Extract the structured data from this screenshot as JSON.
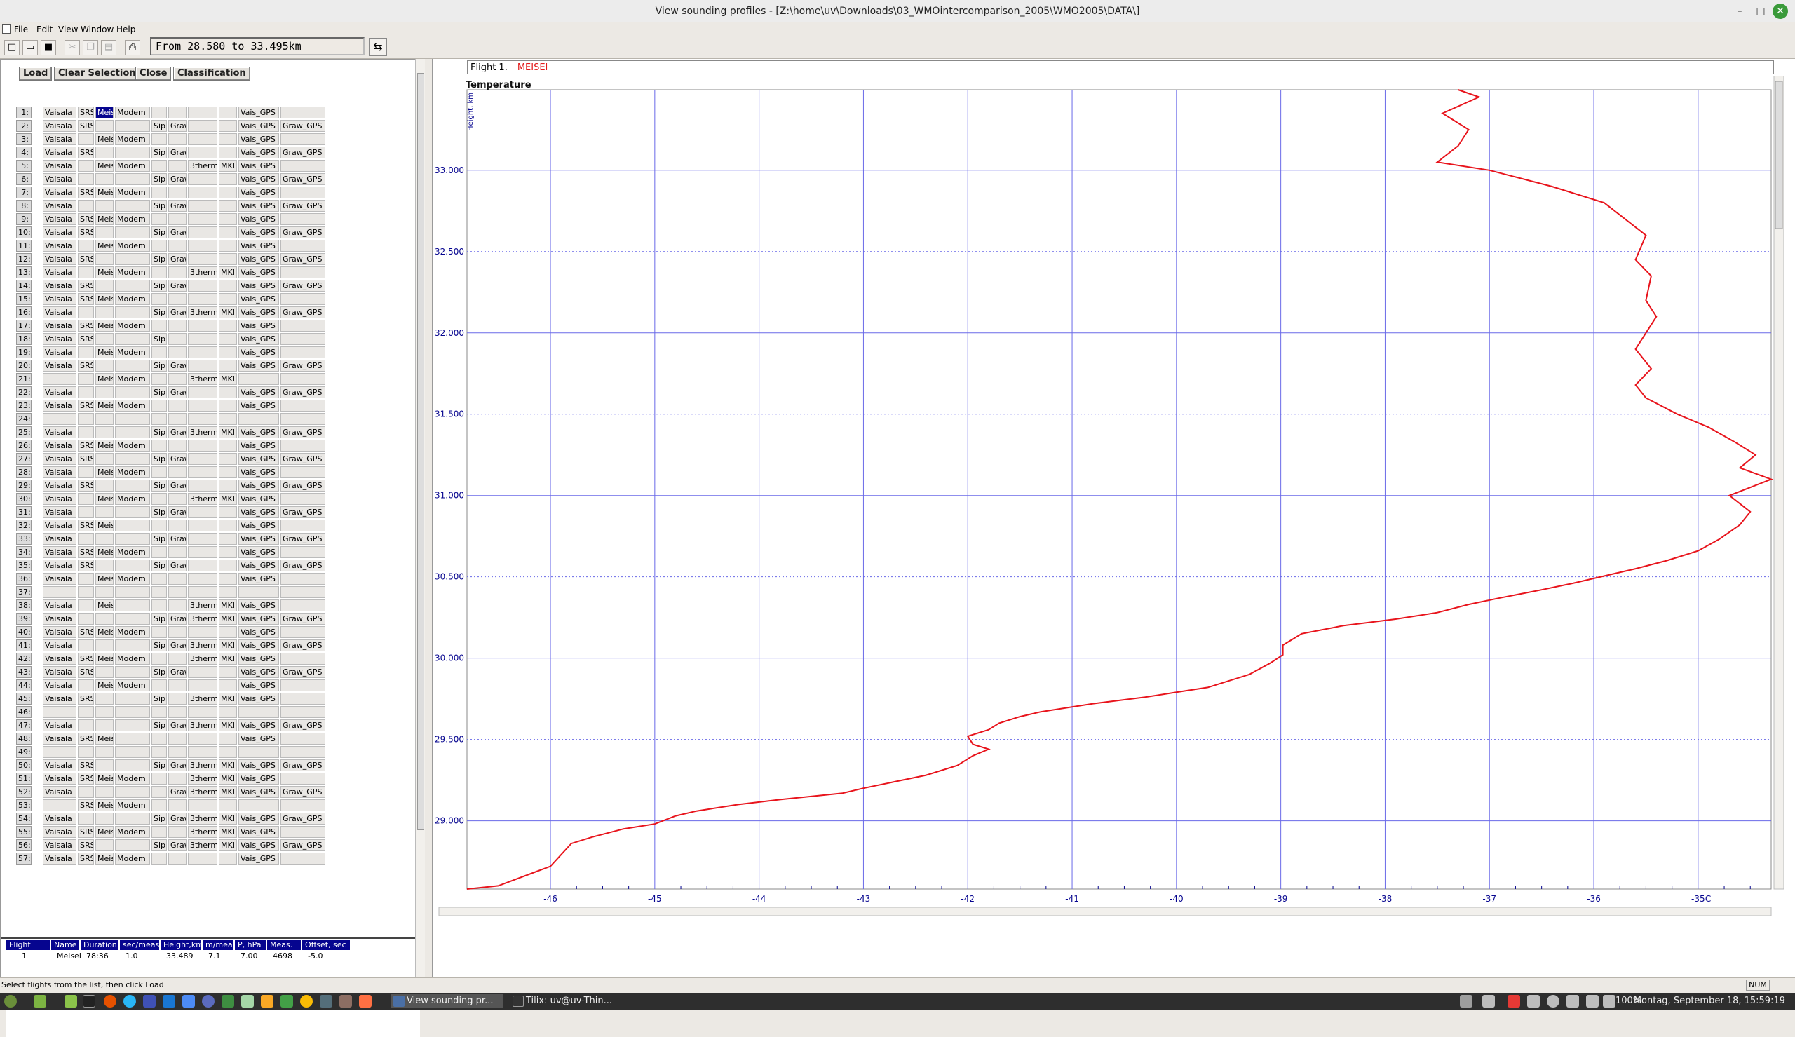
{
  "window": {
    "title": "View sounding profiles - [Z:\\home\\uv\\Downloads\\03_WMOintercomparison_2005\\WMO2005\\DATA\\]",
    "minimize": "–",
    "maximize": "□",
    "close": "✕"
  },
  "menu": [
    "File",
    "Edit",
    "View",
    "Window",
    "Help"
  ],
  "toolbar": {
    "range": "From 28.580  to  33.495km",
    "swap_icon": "⇆",
    "icons": [
      "new-file-icon",
      "open-folder-icon",
      "save-icon",
      "cut-icon",
      "copy-icon",
      "paste-icon",
      "print-icon"
    ]
  },
  "buttons": {
    "load": "Load",
    "clear": "Clear Selection",
    "close": "Close",
    "classification": "Classification"
  },
  "flight_rows": [
    [
      "1:",
      "Vaisala",
      "SRS",
      "Meisei",
      "Modem",
      "",
      "",
      "",
      "",
      "Vais_GPS",
      ""
    ],
    [
      "2:",
      "Vaisala",
      "SRS",
      "",
      "",
      "Sip",
      "Graw",
      "",
      "",
      "Vais_GPS",
      "Graw_GPS"
    ],
    [
      "3:",
      "Vaisala",
      "",
      "Meisei",
      "Modem",
      "",
      "",
      "",
      "",
      "Vais_GPS",
      ""
    ],
    [
      "4:",
      "Vaisala",
      "SRS",
      "",
      "",
      "Sip",
      "Graw",
      "",
      "",
      "Vais_GPS",
      "Graw_GPS"
    ],
    [
      "5:",
      "Vaisala",
      "",
      "Meisei",
      "Modem",
      "",
      "",
      "3therm",
      "MKII",
      "Vais_GPS",
      ""
    ],
    [
      "6:",
      "Vaisala",
      "",
      "",
      "",
      "Sip",
      "Graw",
      "",
      "",
      "Vais_GPS",
      "Graw_GPS"
    ],
    [
      "7:",
      "Vaisala",
      "SRS",
      "Meisei",
      "Modem",
      "",
      "",
      "",
      "",
      "Vais_GPS",
      ""
    ],
    [
      "8:",
      "Vaisala",
      "",
      "",
      "",
      "Sip",
      "Graw",
      "",
      "",
      "Vais_GPS",
      "Graw_GPS"
    ],
    [
      "9:",
      "Vaisala",
      "SRS",
      "Meisei",
      "Modem",
      "",
      "",
      "",
      "",
      "Vais_GPS",
      ""
    ],
    [
      "10:",
      "Vaisala",
      "SRS",
      "",
      "",
      "Sip",
      "Graw",
      "",
      "",
      "Vais_GPS",
      "Graw_GPS"
    ],
    [
      "11:",
      "Vaisala",
      "",
      "Meisei",
      "Modem",
      "",
      "",
      "",
      "",
      "Vais_GPS",
      ""
    ],
    [
      "12:",
      "Vaisala",
      "SRS",
      "",
      "",
      "Sip",
      "Graw",
      "",
      "",
      "Vais_GPS",
      "Graw_GPS"
    ],
    [
      "13:",
      "Vaisala",
      "",
      "Meisei",
      "Modem",
      "",
      "",
      "3therm",
      "MKII",
      "Vais_GPS",
      ""
    ],
    [
      "14:",
      "Vaisala",
      "SRS",
      "",
      "",
      "Sip",
      "Graw",
      "",
      "",
      "Vais_GPS",
      "Graw_GPS"
    ],
    [
      "15:",
      "Vaisala",
      "SRS",
      "Meisei",
      "Modem",
      "",
      "",
      "",
      "",
      "Vais_GPS",
      ""
    ],
    [
      "16:",
      "Vaisala",
      "",
      "",
      "",
      "Sip",
      "Graw",
      "3therm",
      "MKII",
      "Vais_GPS",
      "Graw_GPS"
    ],
    [
      "17:",
      "Vaisala",
      "SRS",
      "Meisei",
      "Modem",
      "",
      "",
      "",
      "",
      "Vais_GPS",
      ""
    ],
    [
      "18:",
      "Vaisala",
      "SRS",
      "",
      "",
      "Sip",
      "",
      "",
      "",
      "Vais_GPS",
      ""
    ],
    [
      "19:",
      "Vaisala",
      "",
      "Meisei",
      "Modem",
      "",
      "",
      "",
      "",
      "Vais_GPS",
      ""
    ],
    [
      "20:",
      "Vaisala",
      "SRS",
      "",
      "",
      "Sip",
      "Graw",
      "",
      "",
      "Vais_GPS",
      "Graw_GPS"
    ],
    [
      "21:",
      "",
      "",
      "Meisei",
      "Modem",
      "",
      "",
      "3therm",
      "MKII",
      "",
      ""
    ],
    [
      "22:",
      "Vaisala",
      "",
      "",
      "",
      "Sip",
      "Graw",
      "",
      "",
      "Vais_GPS",
      "Graw_GPS"
    ],
    [
      "23:",
      "Vaisala",
      "SRS",
      "Meisei",
      "Modem",
      "",
      "",
      "",
      "",
      "Vais_GPS",
      ""
    ],
    [
      "24:",
      "",
      "",
      "",
      "",
      "",
      "",
      "",
      "",
      "",
      ""
    ],
    [
      "25:",
      "Vaisala",
      "",
      "",
      "",
      "Sip",
      "Graw",
      "3therm",
      "MKII",
      "Vais_GPS",
      "Graw_GPS"
    ],
    [
      "26:",
      "Vaisala",
      "SRS",
      "Meisei",
      "Modem",
      "",
      "",
      "",
      "",
      "Vais_GPS",
      ""
    ],
    [
      "27:",
      "Vaisala",
      "SRS",
      "",
      "",
      "Sip",
      "Graw",
      "",
      "",
      "Vais_GPS",
      "Graw_GPS"
    ],
    [
      "28:",
      "Vaisala",
      "",
      "Meisei",
      "Modem",
      "",
      "",
      "",
      "",
      "Vais_GPS",
      ""
    ],
    [
      "29:",
      "Vaisala",
      "SRS",
      "",
      "",
      "Sip",
      "Graw",
      "",
      "",
      "Vais_GPS",
      "Graw_GPS"
    ],
    [
      "30:",
      "Vaisala",
      "",
      "Meisei",
      "Modem",
      "",
      "",
      "3therm",
      "MKII",
      "Vais_GPS",
      ""
    ],
    [
      "31:",
      "Vaisala",
      "",
      "",
      "",
      "Sip",
      "Graw",
      "",
      "",
      "Vais_GPS",
      "Graw_GPS"
    ],
    [
      "32:",
      "Vaisala",
      "SRS",
      "Meisei",
      "",
      "",
      "",
      "",
      "",
      "Vais_GPS",
      ""
    ],
    [
      "33:",
      "Vaisala",
      "",
      "",
      "",
      "Sip",
      "Graw",
      "",
      "",
      "Vais_GPS",
      "Graw_GPS"
    ],
    [
      "34:",
      "Vaisala",
      "SRS",
      "Meisei",
      "Modem",
      "",
      "",
      "",
      "",
      "Vais_GPS",
      ""
    ],
    [
      "35:",
      "Vaisala",
      "SRS",
      "",
      "",
      "Sip",
      "Graw",
      "",
      "",
      "Vais_GPS",
      "Graw_GPS"
    ],
    [
      "36:",
      "Vaisala",
      "",
      "Meisei",
      "Modem",
      "",
      "",
      "",
      "",
      "Vais_GPS",
      ""
    ],
    [
      "37:",
      "",
      "",
      "",
      "",
      "",
      "",
      "",
      "",
      "",
      ""
    ],
    [
      "38:",
      "Vaisala",
      "",
      "Meisei",
      "",
      "",
      "",
      "3therm",
      "MKII",
      "Vais_GPS",
      ""
    ],
    [
      "39:",
      "Vaisala",
      "",
      "",
      "",
      "Sip",
      "Graw",
      "3therm",
      "MKII",
      "Vais_GPS",
      "Graw_GPS"
    ],
    [
      "40:",
      "Vaisala",
      "SRS",
      "Meisei",
      "Modem",
      "",
      "",
      "",
      "",
      "Vais_GPS",
      ""
    ],
    [
      "41:",
      "Vaisala",
      "",
      "",
      "",
      "Sip",
      "Graw",
      "3therm",
      "MKII",
      "Vais_GPS",
      "Graw_GPS"
    ],
    [
      "42:",
      "Vaisala",
      "SRS",
      "Meisei",
      "Modem",
      "",
      "",
      "3therm",
      "MKII",
      "Vais_GPS",
      ""
    ],
    [
      "43:",
      "Vaisala",
      "SRS",
      "",
      "",
      "Sip",
      "Graw",
      "",
      "",
      "Vais_GPS",
      "Graw_GPS"
    ],
    [
      "44:",
      "Vaisala",
      "",
      "Meisei",
      "Modem",
      "",
      "",
      "",
      "",
      "Vais_GPS",
      ""
    ],
    [
      "45:",
      "Vaisala",
      "SRS",
      "",
      "",
      "Sip",
      "",
      "3therm",
      "MKII",
      "Vais_GPS",
      ""
    ],
    [
      "46:",
      "",
      "",
      "",
      "",
      "",
      "",
      "",
      "",
      "",
      ""
    ],
    [
      "47:",
      "Vaisala",
      "",
      "",
      "",
      "Sip",
      "Graw",
      "3therm",
      "MKII",
      "Vais_GPS",
      "Graw_GPS"
    ],
    [
      "48:",
      "Vaisala",
      "SRS",
      "Meisei",
      "",
      "",
      "",
      "",
      "",
      "Vais_GPS",
      ""
    ],
    [
      "49:",
      "",
      "",
      "",
      "",
      "",
      "",
      "",
      "",
      "",
      ""
    ],
    [
      "50:",
      "Vaisala",
      "SRS",
      "",
      "",
      "Sip",
      "Graw",
      "3therm",
      "MKII",
      "Vais_GPS",
      "Graw_GPS"
    ],
    [
      "51:",
      "Vaisala",
      "SRS",
      "Meisei",
      "Modem",
      "",
      "",
      "3therm",
      "MKII",
      "Vais_GPS",
      ""
    ],
    [
      "52:",
      "Vaisala",
      "",
      "",
      "",
      "",
      "Graw",
      "3therm",
      "MKII",
      "Vais_GPS",
      "Graw_GPS"
    ],
    [
      "53:",
      "",
      "SRS",
      "Meisei",
      "Modem",
      "",
      "",
      "",
      "",
      "",
      ""
    ],
    [
      "54:",
      "Vaisala",
      "",
      "",
      "",
      "Sip",
      "Graw",
      "3therm",
      "MKII",
      "Vais_GPS",
      "Graw_GPS"
    ],
    [
      "55:",
      "Vaisala",
      "SRS",
      "Meisei",
      "Modem",
      "",
      "",
      "3therm",
      "MKII",
      "Vais_GPS",
      ""
    ],
    [
      "56:",
      "Vaisala",
      "SRS",
      "",
      "",
      "Sip",
      "Graw",
      "3therm",
      "MKII",
      "Vais_GPS",
      "Graw_GPS"
    ],
    [
      "57:",
      "Vaisala",
      "SRS",
      "Meisei",
      "Modem",
      "",
      "",
      "",
      "",
      "Vais_GPS",
      ""
    ]
  ],
  "info_table": {
    "headers": [
      "Flight",
      "Name",
      "Duration",
      "sec/meas",
      "Height,km",
      "m/meas",
      "P, hPa",
      "Meas.",
      "Offset, sec"
    ],
    "row": [
      "1",
      "Meisei",
      "78:36",
      "1.0",
      "33.489",
      "7.1",
      "7.00",
      "4698",
      "-5.0"
    ]
  },
  "status": {
    "hint": "Select flights from the list, then click Load",
    "num": "NUM"
  },
  "flight_header": {
    "label": "Flight 1.",
    "name": "MEISEI"
  },
  "chart_data": {
    "type": "line",
    "title": "Temperature",
    "ylabel": "Height, km",
    "xlabel": "",
    "unit_label": "C",
    "xlim": [
      -46.8,
      -34.3
    ],
    "ylim": [
      28.58,
      33.495
    ],
    "xticks": [
      -46,
      -45,
      -44,
      -43,
      -42,
      -41,
      -40,
      -39,
      -38,
      -37,
      -36,
      -35
    ],
    "yticks": [
      "29.000",
      "29.500",
      "30.000",
      "30.500",
      "31.000",
      "31.500",
      "32.000",
      "32.500",
      "33.000"
    ],
    "grid": true,
    "line_color": "#e8141c",
    "series": [
      {
        "name": "MEISEI",
        "points": [
          [
            -46.8,
            28.58
          ],
          [
            -46.5,
            28.6
          ],
          [
            -46.0,
            28.72
          ],
          [
            -45.8,
            28.86
          ],
          [
            -45.6,
            28.9
          ],
          [
            -45.3,
            28.95
          ],
          [
            -45.0,
            28.98
          ],
          [
            -44.8,
            29.03
          ],
          [
            -44.6,
            29.06
          ],
          [
            -44.2,
            29.1
          ],
          [
            -43.8,
            29.13
          ],
          [
            -43.2,
            29.17
          ],
          [
            -43.0,
            29.2
          ],
          [
            -42.7,
            29.24
          ],
          [
            -42.4,
            29.28
          ],
          [
            -42.1,
            29.34
          ],
          [
            -41.95,
            29.4
          ],
          [
            -41.8,
            29.44
          ],
          [
            -41.95,
            29.47
          ],
          [
            -42.0,
            29.52
          ],
          [
            -41.8,
            29.56
          ],
          [
            -41.7,
            29.6
          ],
          [
            -41.5,
            29.64
          ],
          [
            -41.3,
            29.67
          ],
          [
            -40.8,
            29.72
          ],
          [
            -40.3,
            29.76
          ],
          [
            -40.0,
            29.79
          ],
          [
            -39.7,
            29.82
          ],
          [
            -39.3,
            29.9
          ],
          [
            -39.1,
            29.97
          ],
          [
            -38.98,
            30.02
          ],
          [
            -38.98,
            30.08
          ],
          [
            -38.8,
            30.15
          ],
          [
            -38.4,
            30.2
          ],
          [
            -37.9,
            30.24
          ],
          [
            -37.5,
            30.28
          ],
          [
            -37.2,
            30.33
          ],
          [
            -36.9,
            30.37
          ],
          [
            -36.5,
            30.42
          ],
          [
            -36.2,
            30.46
          ],
          [
            -35.8,
            30.52
          ],
          [
            -35.6,
            30.55
          ],
          [
            -35.3,
            30.6
          ],
          [
            -35.0,
            30.66
          ],
          [
            -34.8,
            30.73
          ],
          [
            -34.6,
            30.82
          ],
          [
            -34.5,
            30.9
          ],
          [
            -34.7,
            31.0
          ],
          [
            -34.3,
            31.1
          ],
          [
            -34.6,
            31.17
          ],
          [
            -34.45,
            31.25
          ],
          [
            -34.65,
            31.33
          ],
          [
            -34.9,
            31.42
          ],
          [
            -35.2,
            31.5
          ],
          [
            -35.5,
            31.6
          ],
          [
            -35.6,
            31.68
          ],
          [
            -35.45,
            31.78
          ],
          [
            -35.6,
            31.9
          ],
          [
            -35.5,
            32.0
          ],
          [
            -35.4,
            32.1
          ],
          [
            -35.5,
            32.2
          ],
          [
            -35.45,
            32.35
          ],
          [
            -35.6,
            32.45
          ],
          [
            -35.5,
            32.6
          ],
          [
            -35.9,
            32.8
          ],
          [
            -36.4,
            32.9
          ],
          [
            -37.0,
            33.0
          ],
          [
            -37.5,
            33.05
          ],
          [
            -37.3,
            33.15
          ],
          [
            -37.2,
            33.25
          ],
          [
            -37.45,
            33.35
          ],
          [
            -37.1,
            33.45
          ],
          [
            -37.3,
            33.495
          ]
        ]
      }
    ]
  },
  "taskbar": {
    "tasks": [
      {
        "label": "View sounding pr...",
        "active": true
      },
      {
        "label": "Tilix: uv@uv-Thin...",
        "active": false
      }
    ],
    "battery": "100%",
    "clock": "Montag, September 18, 15:59:19"
  }
}
